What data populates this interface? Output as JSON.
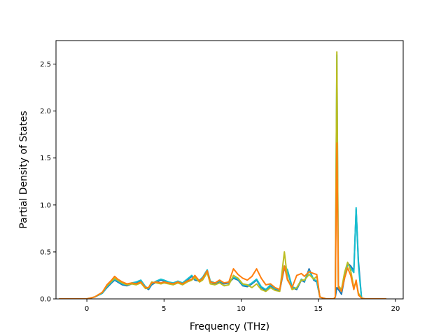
{
  "chart_data": {
    "type": "line",
    "title": "",
    "xlabel": "Frequency (THz)",
    "ylabel": "Partial Density of States",
    "xlim": [
      -2.0,
      20.5
    ],
    "ylim": [
      0.0,
      2.75
    ],
    "xticks": [
      0,
      5,
      10,
      15,
      20
    ],
    "yticks": [
      0.0,
      0.5,
      1.0,
      1.5,
      2.0,
      2.5
    ],
    "xtick_labels": [
      "0",
      "5",
      "10",
      "15",
      "20"
    ],
    "ytick_labels": [
      "0.0",
      "0.5",
      "1.0",
      "1.5",
      "2.0",
      "2.5"
    ],
    "grid": false,
    "legend": "none",
    "series": [
      {
        "color": "#1f77b4",
        "x": [
          -1.8,
          0.0,
          0.5,
          1.0,
          1.3,
          1.6,
          1.8,
          2.0,
          2.3,
          2.6,
          2.9,
          3.2,
          3.5,
          3.8,
          4.0,
          4.2,
          4.5,
          4.8,
          5.0,
          5.3,
          5.6,
          5.9,
          6.2,
          6.5,
          6.8,
          7.0,
          7.3,
          7.5,
          7.8,
          8.0,
          8.3,
          8.6,
          8.9,
          9.2,
          9.5,
          9.8,
          10.1,
          10.4,
          10.7,
          11.0,
          11.3,
          11.6,
          11.9,
          12.2,
          12.5,
          12.8,
          13.0,
          13.3,
          13.6,
          13.9,
          14.1,
          14.4,
          14.7,
          14.9,
          15.1,
          15.5,
          16.0,
          16.1,
          16.2,
          16.3,
          16.5,
          16.7,
          16.9,
          17.1,
          17.3,
          17.45,
          17.6,
          17.8,
          18.0,
          19.4
        ],
        "y": [
          0.0,
          0.0,
          0.02,
          0.06,
          0.12,
          0.17,
          0.2,
          0.18,
          0.15,
          0.14,
          0.16,
          0.17,
          0.19,
          0.12,
          0.1,
          0.15,
          0.18,
          0.2,
          0.19,
          0.17,
          0.16,
          0.18,
          0.16,
          0.2,
          0.24,
          0.2,
          0.19,
          0.22,
          0.3,
          0.18,
          0.16,
          0.18,
          0.16,
          0.17,
          0.22,
          0.2,
          0.14,
          0.13,
          0.16,
          0.2,
          0.12,
          0.09,
          0.14,
          0.1,
          0.09,
          0.33,
          0.3,
          0.12,
          0.1,
          0.2,
          0.18,
          0.32,
          0.2,
          0.18,
          0.02,
          0.0,
          0.0,
          0.02,
          0.12,
          0.1,
          0.05,
          0.22,
          0.38,
          0.35,
          0.3,
          0.95,
          0.4,
          0.01,
          0.0,
          0.0
        ]
      },
      {
        "color": "#17becf",
        "x": [
          -1.8,
          0.0,
          0.5,
          1.0,
          1.3,
          1.6,
          1.8,
          2.0,
          2.3,
          2.6,
          2.9,
          3.2,
          3.5,
          3.8,
          4.0,
          4.2,
          4.5,
          4.8,
          5.0,
          5.3,
          5.6,
          5.9,
          6.2,
          6.5,
          6.8,
          7.0,
          7.3,
          7.5,
          7.8,
          8.0,
          8.3,
          8.6,
          8.9,
          9.2,
          9.5,
          9.8,
          10.1,
          10.4,
          10.7,
          11.0,
          11.3,
          11.6,
          11.9,
          12.2,
          12.5,
          12.8,
          13.0,
          13.3,
          13.6,
          13.9,
          14.1,
          14.4,
          14.7,
          14.9,
          15.1,
          15.5,
          16.0,
          16.1,
          16.2,
          16.3,
          16.5,
          16.7,
          16.9,
          17.1,
          17.3,
          17.45,
          17.6,
          17.8,
          18.0,
          19.4
        ],
        "y": [
          0.0,
          0.0,
          0.02,
          0.06,
          0.13,
          0.18,
          0.21,
          0.19,
          0.16,
          0.15,
          0.17,
          0.18,
          0.2,
          0.13,
          0.11,
          0.16,
          0.19,
          0.21,
          0.2,
          0.18,
          0.17,
          0.19,
          0.17,
          0.21,
          0.25,
          0.21,
          0.2,
          0.23,
          0.31,
          0.19,
          0.17,
          0.19,
          0.17,
          0.18,
          0.23,
          0.21,
          0.15,
          0.14,
          0.17,
          0.21,
          0.13,
          0.1,
          0.15,
          0.11,
          0.1,
          0.35,
          0.31,
          0.13,
          0.11,
          0.21,
          0.19,
          0.3,
          0.21,
          0.19,
          0.02,
          0.0,
          0.0,
          0.02,
          2.6,
          0.12,
          0.08,
          0.25,
          0.37,
          0.33,
          0.28,
          0.97,
          0.35,
          0.01,
          0.0,
          0.0
        ]
      },
      {
        "color": "#bcbd22",
        "x": [
          -1.8,
          0.0,
          0.5,
          1.0,
          1.3,
          1.6,
          1.8,
          2.0,
          2.3,
          2.6,
          2.9,
          3.2,
          3.5,
          3.8,
          4.0,
          4.2,
          4.5,
          4.8,
          5.0,
          5.3,
          5.6,
          5.9,
          6.2,
          6.5,
          6.8,
          7.0,
          7.3,
          7.5,
          7.8,
          8.0,
          8.3,
          8.6,
          8.9,
          9.2,
          9.5,
          9.8,
          10.1,
          10.4,
          10.7,
          11.0,
          11.3,
          11.6,
          11.9,
          12.2,
          12.5,
          12.8,
          13.0,
          13.3,
          13.6,
          13.9,
          14.1,
          14.4,
          14.7,
          14.9,
          15.1,
          15.5,
          16.0,
          16.1,
          16.2,
          16.3,
          16.5,
          16.7,
          16.9,
          17.1,
          17.3,
          17.45,
          17.6,
          17.8,
          18.0,
          19.4
        ],
        "y": [
          0.0,
          0.0,
          0.02,
          0.07,
          0.14,
          0.19,
          0.22,
          0.2,
          0.17,
          0.15,
          0.16,
          0.15,
          0.17,
          0.11,
          0.12,
          0.18,
          0.17,
          0.16,
          0.17,
          0.16,
          0.15,
          0.17,
          0.15,
          0.18,
          0.2,
          0.23,
          0.18,
          0.2,
          0.28,
          0.16,
          0.15,
          0.17,
          0.14,
          0.15,
          0.25,
          0.22,
          0.16,
          0.15,
          0.12,
          0.16,
          0.1,
          0.08,
          0.12,
          0.09,
          0.08,
          0.5,
          0.22,
          0.1,
          0.12,
          0.2,
          0.2,
          0.26,
          0.21,
          0.24,
          0.02,
          0.0,
          0.0,
          0.02,
          2.63,
          0.14,
          0.1,
          0.28,
          0.39,
          0.3,
          0.12,
          0.18,
          0.06,
          0.01,
          0.0,
          0.0
        ]
      },
      {
        "color": "#ff7f0e",
        "x": [
          -1.8,
          0.0,
          0.5,
          1.0,
          1.3,
          1.6,
          1.8,
          2.0,
          2.3,
          2.6,
          2.9,
          3.2,
          3.5,
          3.8,
          4.0,
          4.2,
          4.5,
          4.8,
          5.0,
          5.3,
          5.6,
          5.9,
          6.2,
          6.5,
          6.8,
          7.0,
          7.3,
          7.5,
          7.8,
          8.0,
          8.3,
          8.6,
          8.9,
          9.2,
          9.5,
          9.8,
          10.1,
          10.4,
          10.7,
          11.0,
          11.3,
          11.6,
          11.9,
          12.2,
          12.5,
          12.8,
          13.0,
          13.3,
          13.6,
          13.9,
          14.1,
          14.4,
          14.7,
          14.9,
          15.1,
          15.5,
          16.0,
          16.1,
          16.2,
          16.3,
          16.5,
          16.7,
          16.9,
          17.1,
          17.3,
          17.45,
          17.6,
          17.8,
          18.0,
          19.4
        ],
        "y": [
          0.0,
          0.0,
          0.02,
          0.07,
          0.15,
          0.2,
          0.24,
          0.21,
          0.18,
          0.16,
          0.17,
          0.16,
          0.18,
          0.12,
          0.12,
          0.17,
          0.18,
          0.17,
          0.18,
          0.17,
          0.16,
          0.18,
          0.16,
          0.19,
          0.21,
          0.25,
          0.19,
          0.22,
          0.3,
          0.18,
          0.17,
          0.2,
          0.17,
          0.18,
          0.32,
          0.26,
          0.22,
          0.2,
          0.24,
          0.32,
          0.22,
          0.15,
          0.16,
          0.12,
          0.1,
          0.35,
          0.2,
          0.12,
          0.25,
          0.27,
          0.24,
          0.29,
          0.27,
          0.26,
          0.02,
          0.0,
          0.0,
          0.02,
          1.66,
          0.12,
          0.08,
          0.22,
          0.33,
          0.25,
          0.1,
          0.2,
          0.04,
          0.01,
          0.0,
          0.0
        ]
      }
    ]
  }
}
